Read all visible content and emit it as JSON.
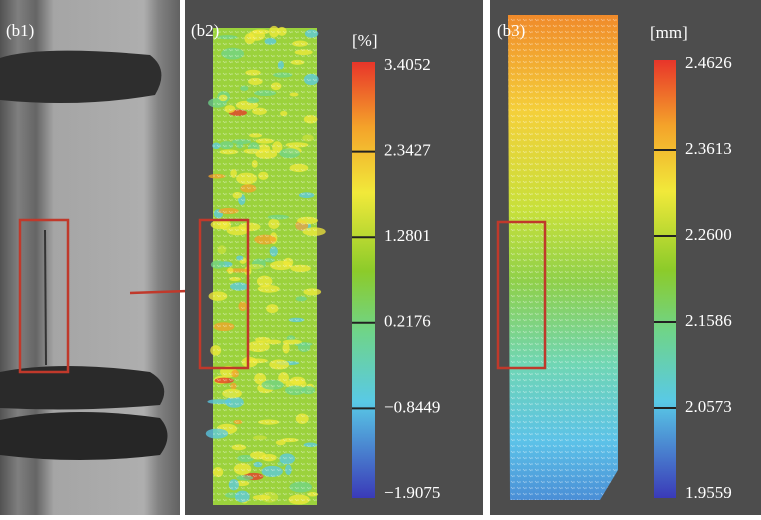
{
  "panels": [
    {
      "label": "(b1)"
    },
    {
      "label": "(b2)",
      "unit": "[%]",
      "colorbar_ticks": [
        "3.4052",
        "2.3427",
        "1.2801",
        "0.2176",
        "−0.8449",
        "−1.9075"
      ]
    },
    {
      "label": "(b3)",
      "unit": "[mm]",
      "colorbar_ticks": [
        "2.4626",
        "2.3613",
        "2.2600",
        "2.1586",
        "2.0573",
        "1.9559"
      ]
    }
  ]
}
